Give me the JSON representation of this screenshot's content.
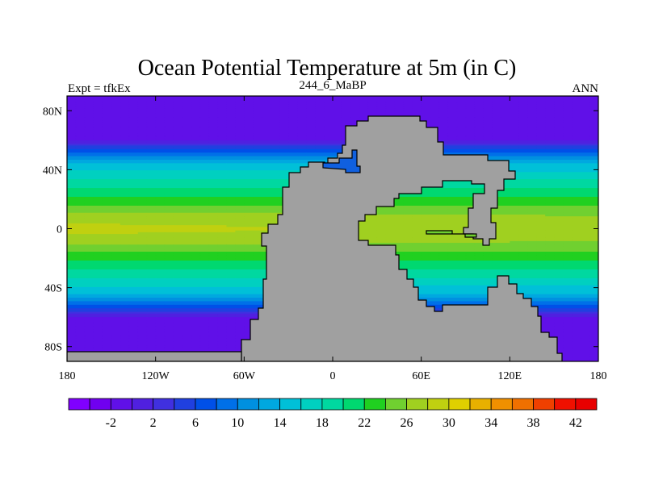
{
  "chart_data": {
    "type": "heatmap",
    "title": "Ocean Potential Temperature at 5m (in C)",
    "left_string": "Expt = tfkEx",
    "center_string": "244_6_MaBP",
    "right_string": "ANN",
    "x_ticks": [
      {
        "value": -180,
        "label": "180"
      },
      {
        "value": -120,
        "label": "120W"
      },
      {
        "value": -60,
        "label": "60W"
      },
      {
        "value": 0,
        "label": "0"
      },
      {
        "value": 60,
        "label": "60E"
      },
      {
        "value": 120,
        "label": "120E"
      },
      {
        "value": 180,
        "label": "180"
      }
    ],
    "y_ticks": [
      {
        "value": 80,
        "label": "80N"
      },
      {
        "value": 40,
        "label": "40N"
      },
      {
        "value": 0,
        "label": "0"
      },
      {
        "value": -40,
        "label": "40S"
      },
      {
        "value": -80,
        "label": "80S"
      }
    ],
    "xlim": [
      -180,
      180
    ],
    "ylim": [
      -90,
      90
    ],
    "colorbar": {
      "levels": [
        -4,
        -2,
        0,
        2,
        4,
        6,
        8,
        10,
        12,
        14,
        16,
        18,
        20,
        22,
        24,
        26,
        28,
        30,
        32,
        34,
        36,
        38,
        40,
        42
      ],
      "labels": [
        "-2",
        "2",
        "6",
        "10",
        "14",
        "18",
        "22",
        "26",
        "30",
        "34",
        "38",
        "42"
      ],
      "colors": [
        "#8000ff",
        "#7000f0",
        "#6010e8",
        "#5020e0",
        "#4030e0",
        "#2040e0",
        "#0050e8",
        "#0070e8",
        "#0090e0",
        "#00a8e0",
        "#00c0d8",
        "#00d0c0",
        "#00d8a0",
        "#00d870",
        "#20d020",
        "#70d030",
        "#a0d020",
        "#c0d010",
        "#e0d000",
        "#e8b000",
        "#f09000",
        "#f07000",
        "#f04000",
        "#f01000",
        "#e80000"
      ]
    },
    "continent_color": "#a0a0a0",
    "description_bands": [
      {
        "lat": 90,
        "temp": -2
      },
      {
        "lat": 62,
        "temp": -2
      },
      {
        "lat": 52,
        "temp": 8
      },
      {
        "lat": 44,
        "temp": 14
      },
      {
        "lat": 34,
        "temp": 18
      },
      {
        "lat": 22,
        "temp": 22
      },
      {
        "lat": 10,
        "temp": 26
      },
      {
        "lat": 0,
        "temp": 28
      },
      {
        "lat": -10,
        "temp": 26
      },
      {
        "lat": -22,
        "temp": 22
      },
      {
        "lat": -34,
        "temp": 18
      },
      {
        "lat": -44,
        "temp": 14
      },
      {
        "lat": -52,
        "temp": 8
      },
      {
        "lat": -62,
        "temp": -2
      },
      {
        "lat": -90,
        "temp": -2
      }
    ]
  }
}
